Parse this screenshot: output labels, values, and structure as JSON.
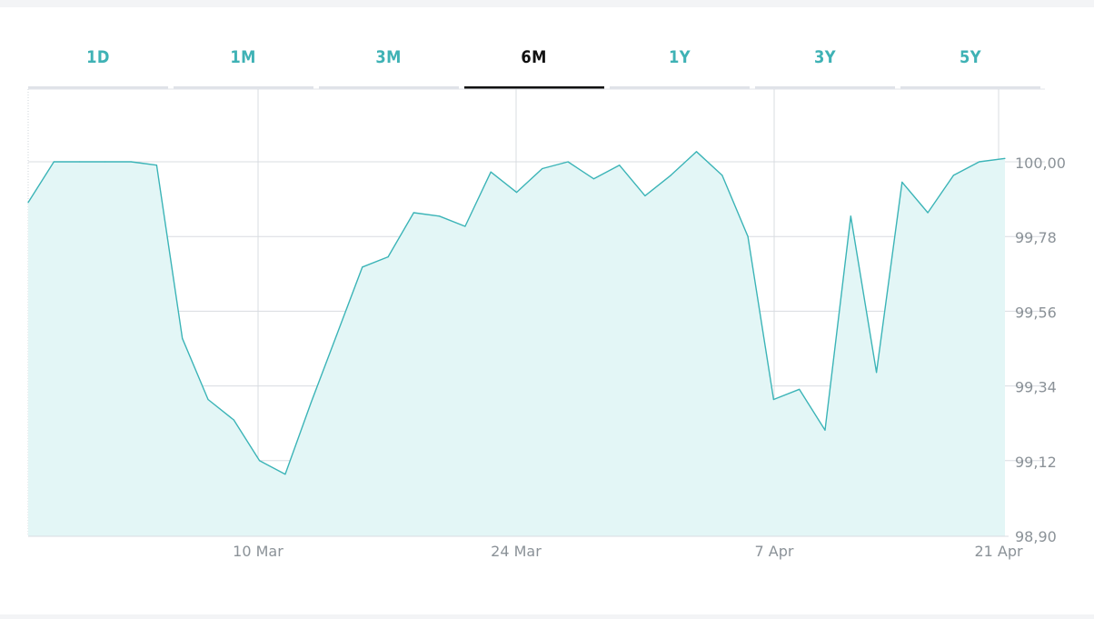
{
  "periods": {
    "tabs": [
      "1D",
      "1M",
      "3M",
      "6M",
      "1Y",
      "3Y",
      "5Y"
    ],
    "selected": "6M",
    "colors": {
      "active_text": "#111111",
      "inactive_text": "#3fb2b5",
      "active_bar": "#111111",
      "inactive_bar": "#dfe2e8"
    }
  },
  "chart_data": {
    "type": "area",
    "xlabel": "",
    "ylabel": "",
    "x_ticks": [
      "10 Mar",
      "24 Mar",
      "7 Apr",
      "21 Apr"
    ],
    "y_ticks": [
      "100,00",
      "99,78",
      "99,56",
      "99,34",
      "99,12",
      "98,90"
    ],
    "ylim": [
      98.9,
      100.22
    ],
    "grid": true,
    "line_color": "#3bb4b7",
    "fill_color": "#e3f6f6",
    "series": [
      {
        "values": [
          99.88,
          100.0,
          100.0,
          100.0,
          100.0,
          99.99,
          99.48,
          99.3,
          99.24,
          99.12,
          99.08,
          99.29,
          99.49,
          99.69,
          99.72,
          99.85,
          99.84,
          99.81,
          99.97,
          99.91,
          99.98,
          100.0,
          99.95,
          99.99,
          99.9,
          99.96,
          100.03,
          99.96,
          99.78,
          99.3,
          99.33,
          99.21,
          99.84,
          99.38,
          99.94,
          99.85,
          99.96,
          100.0,
          100.01
        ]
      }
    ]
  }
}
